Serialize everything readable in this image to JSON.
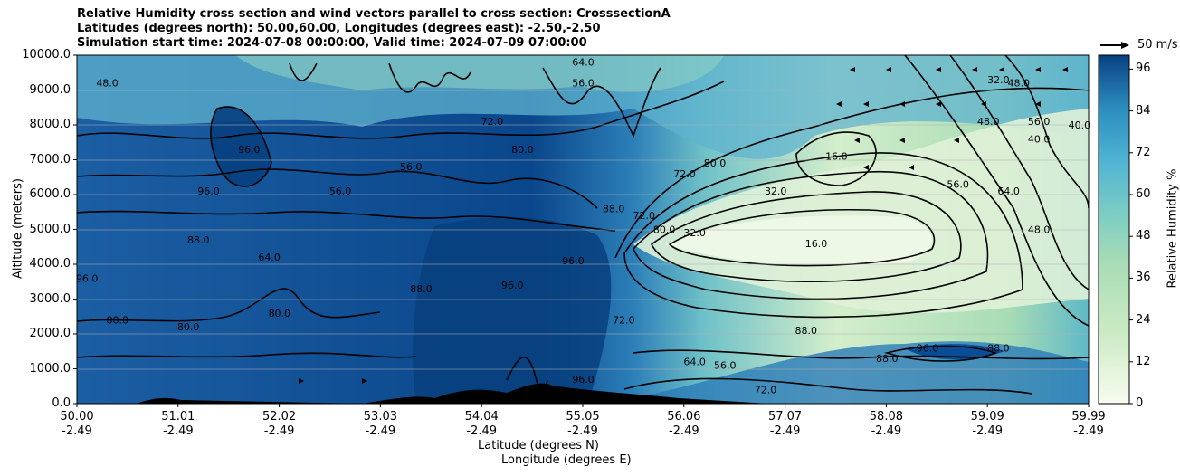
{
  "chart_data": {
    "type": "contour-cross-section",
    "title_lines": [
      "Relative Humidity cross section and wind vectors parallel to cross section: CrosssectionA",
      "Latitudes (degrees north): 50.00,60.00, Longitudes (degrees east): -2.50,-2.50",
      "Simulation start time: 2024-07-08 00:00:00, Valid time: 2024-07-09 07:00:00"
    ],
    "ylabel": "Altitude (meters)",
    "xlabel_lat": "Latitude (degrees N)",
    "xlabel_lon": "Longitude (degrees E)",
    "ylim": [
      0,
      10000
    ],
    "yticks": [
      "0.0",
      "1000.0",
      "2000.0",
      "3000.0",
      "4000.0",
      "5000.0",
      "6000.0",
      "7000.0",
      "8000.0",
      "9000.0",
      "10000.0"
    ],
    "xticks_lat": [
      "50.00",
      "51.01",
      "52.02",
      "53.03",
      "54.04",
      "55.05",
      "56.06",
      "57.07",
      "58.08",
      "59.09",
      "59.99"
    ],
    "xticks_lon": [
      "-2.49",
      "-2.49",
      "-2.49",
      "-2.49",
      "-2.49",
      "-2.49",
      "-2.49",
      "-2.49",
      "-2.49",
      "-2.49",
      "-2.49"
    ],
    "colorbar_label": "Relative Humidity %",
    "colorbar_ticks": [
      "0",
      "12",
      "24",
      "36",
      "48",
      "60",
      "72",
      "84",
      "96"
    ],
    "colorbar_range": [
      0,
      100
    ],
    "wind_key": "50 m/s",
    "contour_labels": [
      {
        "text": "16.0",
        "lat": 57.3,
        "alt": 4500
      },
      {
        "text": "16.0",
        "lat": 57.5,
        "alt": 7000
      },
      {
        "text": "32.0",
        "lat": 56.9,
        "alt": 6000
      },
      {
        "text": "32.0",
        "lat": 59.1,
        "alt": 9200
      },
      {
        "text": "32.0",
        "lat": 56.1,
        "alt": 4800
      },
      {
        "text": "40.0",
        "lat": 59.5,
        "alt": 7500
      },
      {
        "text": "40.0",
        "lat": 59.9,
        "alt": 7900
      },
      {
        "text": "48.0",
        "lat": 59.3,
        "alt": 9100
      },
      {
        "text": "48.0",
        "lat": 59.0,
        "alt": 8000
      },
      {
        "text": "48.0",
        "lat": 59.5,
        "alt": 4900
      },
      {
        "text": "48.0",
        "lat": 50.3,
        "alt": 9100
      },
      {
        "text": "56.0",
        "lat": 59.5,
        "alt": 8000
      },
      {
        "text": "56.0",
        "lat": 58.7,
        "alt": 6200
      },
      {
        "text": "56.0",
        "lat": 52.6,
        "alt": 6000
      },
      {
        "text": "56.0",
        "lat": 53.3,
        "alt": 6700
      },
      {
        "text": "56.0",
        "lat": 55.0,
        "alt": 9100
      },
      {
        "text": "56.0",
        "lat": 56.4,
        "alt": 1000
      },
      {
        "text": "64.0",
        "lat": 59.2,
        "alt": 6000
      },
      {
        "text": "64.0",
        "lat": 51.9,
        "alt": 4100
      },
      {
        "text": "64.0",
        "lat": 55.0,
        "alt": 9700
      },
      {
        "text": "64.0",
        "lat": 56.1,
        "alt": 1100
      },
      {
        "text": "72.0",
        "lat": 54.1,
        "alt": 8000
      },
      {
        "text": "72.0",
        "lat": 56.0,
        "alt": 6500
      },
      {
        "text": "72.0",
        "lat": 55.6,
        "alt": 5300
      },
      {
        "text": "72.0",
        "lat": 55.4,
        "alt": 2300
      },
      {
        "text": "72.0",
        "lat": 56.8,
        "alt": 300
      },
      {
        "text": "80.0",
        "lat": 54.4,
        "alt": 7200
      },
      {
        "text": "80.0",
        "lat": 52.0,
        "alt": 2500
      },
      {
        "text": "80.0",
        "lat": 51.1,
        "alt": 2100
      },
      {
        "text": "80.0",
        "lat": 56.3,
        "alt": 6800
      },
      {
        "text": "80.0",
        "lat": 55.8,
        "alt": 4900
      },
      {
        "text": "88.0",
        "lat": 50.4,
        "alt": 2300
      },
      {
        "text": "88.0",
        "lat": 51.2,
        "alt": 4600
      },
      {
        "text": "88.0",
        "lat": 53.4,
        "alt": 3200
      },
      {
        "text": "88.0",
        "lat": 55.3,
        "alt": 5500
      },
      {
        "text": "88.0",
        "lat": 57.2,
        "alt": 2000
      },
      {
        "text": "88.0",
        "lat": 58.0,
        "alt": 1200
      },
      {
        "text": "88.0",
        "lat": 59.1,
        "alt": 1500
      },
      {
        "text": "96.0",
        "lat": 51.7,
        "alt": 7200
      },
      {
        "text": "96.0",
        "lat": 51.3,
        "alt": 6000
      },
      {
        "text": "96.0",
        "lat": 54.9,
        "alt": 4000
      },
      {
        "text": "96.0",
        "lat": 54.3,
        "alt": 3300
      },
      {
        "text": "96.0",
        "lat": 55.0,
        "alt": 600
      },
      {
        "text": "96.0",
        "lat": 50.1,
        "alt": 3500
      },
      {
        "text": "96.0",
        "lat": 58.4,
        "alt": 1500
      }
    ]
  }
}
